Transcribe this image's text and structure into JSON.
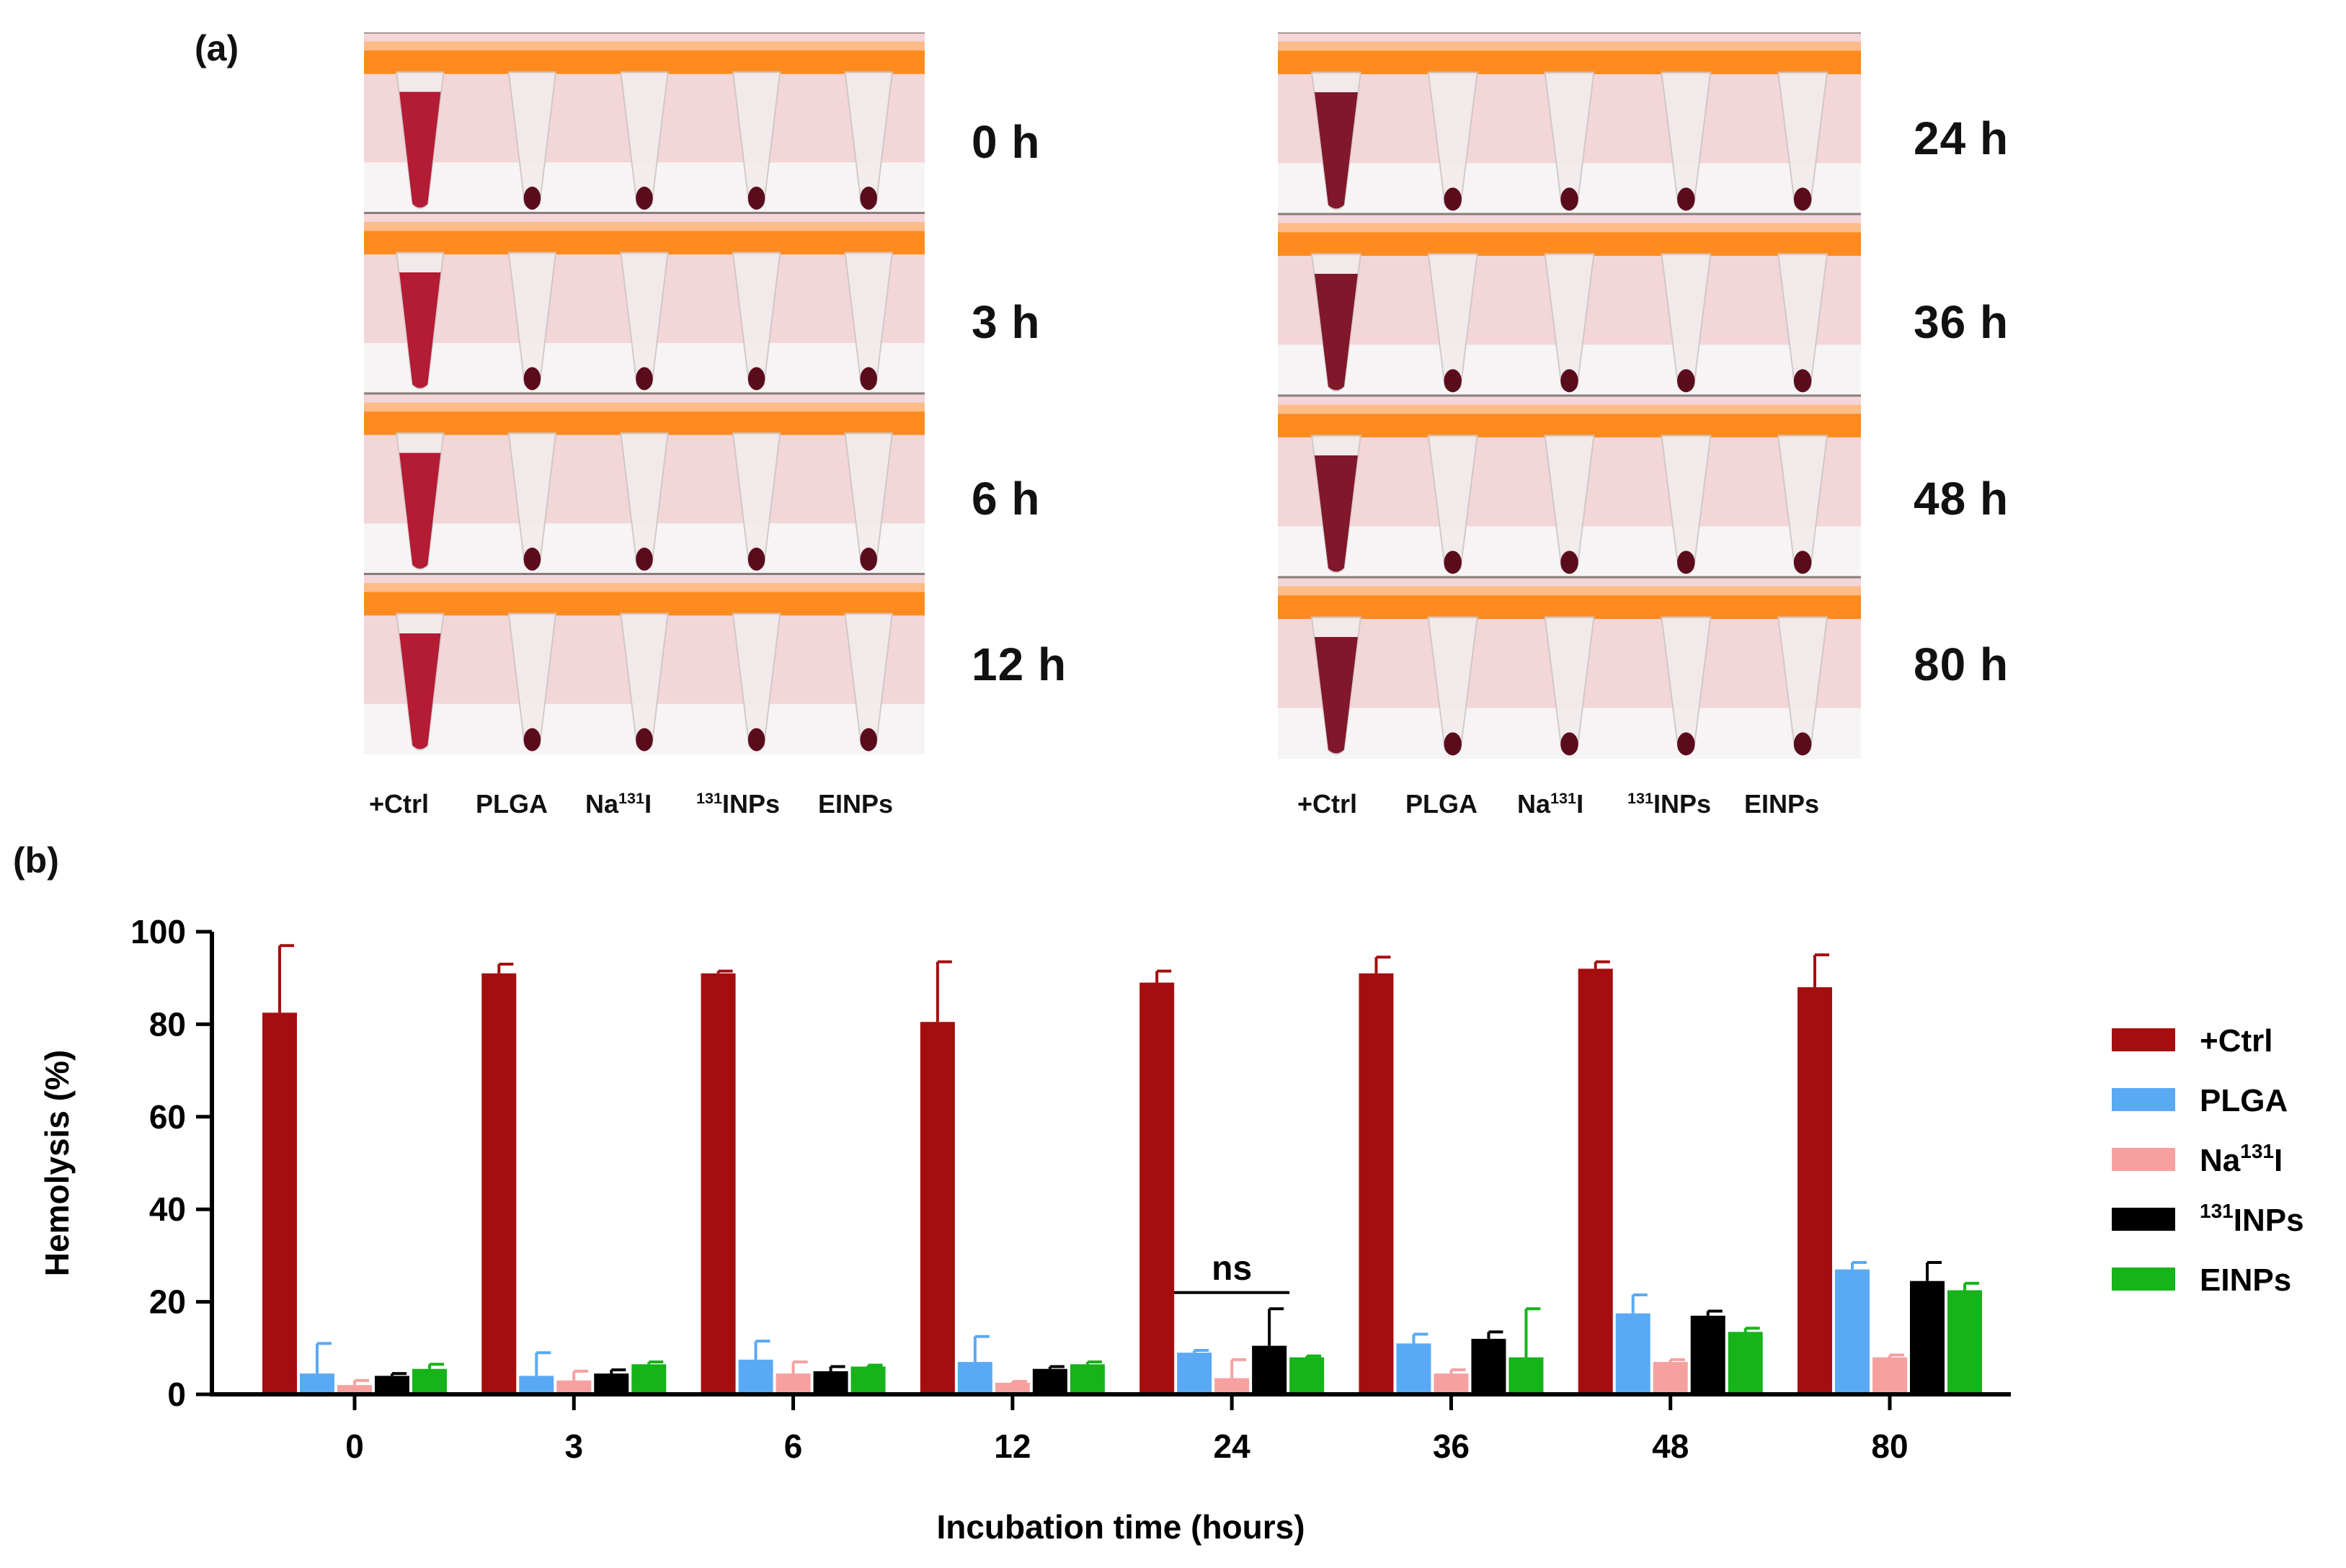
{
  "panel_a": {
    "label": "(a)",
    "left_times": [
      "0 h",
      "3 h",
      "6 h",
      "12 h"
    ],
    "right_times": [
      "24 h",
      "36 h",
      "48 h",
      "80 h"
    ],
    "tube_labels": [
      {
        "text": "+Ctrl",
        "sup": "",
        "suffix": ""
      },
      {
        "text": "PLGA",
        "sup": "",
        "suffix": ""
      },
      {
        "text": "Na",
        "sup": "131",
        "suffix": "I"
      },
      {
        "text": "",
        "sup": "131",
        "suffix": "INPs"
      },
      {
        "text": "EINPs",
        "sup": "",
        "suffix": ""
      }
    ],
    "photo_colors": {
      "rack_orange": "#ff8a1f",
      "ctrl_lysed_red": "#b0102a",
      "pellet_dark": "#5a0c1c",
      "background_pink": "#f3d6d8"
    }
  },
  "panel_b": {
    "label": "(b)",
    "annotation": "ns"
  },
  "chart_data": {
    "type": "bar",
    "title": "",
    "xlabel": "Incubation time (hours)",
    "ylabel": "Hemolysis (%)",
    "ylim": [
      0,
      100
    ],
    "yticks": [
      0,
      20,
      40,
      60,
      80,
      100
    ],
    "categories": [
      "0",
      "3",
      "6",
      "12",
      "24",
      "36",
      "48",
      "80"
    ],
    "legend_position": "right",
    "series": [
      {
        "name": "+Ctrl",
        "name_base": "+Ctrl",
        "name_sup": "",
        "name_suffix": "",
        "color": "#a50e0e",
        "values": [
          82.5,
          91,
          91,
          80.5,
          89,
          91,
          92,
          88
        ],
        "errors": [
          14.5,
          2,
          0.5,
          13,
          2.5,
          3.5,
          1.5,
          7
        ]
      },
      {
        "name": "PLGA",
        "name_base": "PLGA",
        "name_sup": "",
        "name_suffix": "",
        "color": "#5aa9f5",
        "values": [
          4.5,
          4,
          7.5,
          7,
          9,
          11,
          17.5,
          27
        ],
        "errors": [
          6.5,
          5,
          4,
          5.5,
          0.5,
          2,
          4,
          1.5
        ]
      },
      {
        "name": "Na131I",
        "name_base": "Na",
        "name_sup": "131",
        "name_suffix": "I",
        "color": "#f7a0a0",
        "values": [
          2,
          3,
          4.5,
          2.5,
          3.5,
          4.5,
          7,
          8
        ],
        "errors": [
          1,
          2,
          2.5,
          0.3,
          4,
          0.8,
          0.5,
          0.5
        ]
      },
      {
        "name": "131INPs",
        "name_base": "",
        "name_sup": "131",
        "name_suffix": "INPs",
        "color": "#000000",
        "values": [
          4,
          4.5,
          5,
          5.5,
          10.5,
          12,
          17,
          24.5
        ],
        "errors": [
          0.5,
          0.8,
          1,
          0.5,
          8,
          1.5,
          1,
          4
        ]
      },
      {
        "name": "EINPs",
        "name_base": "EINPs",
        "name_sup": "",
        "name_suffix": "",
        "color": "#16b31b",
        "values": [
          5.5,
          6.5,
          6,
          6.5,
          8,
          8,
          13.5,
          22.5
        ],
        "errors": [
          1,
          0.5,
          0.3,
          0.5,
          0.3,
          10.5,
          0.8,
          1.5
        ]
      }
    ],
    "significance": [
      {
        "category": "24",
        "label": "ns"
      }
    ]
  }
}
